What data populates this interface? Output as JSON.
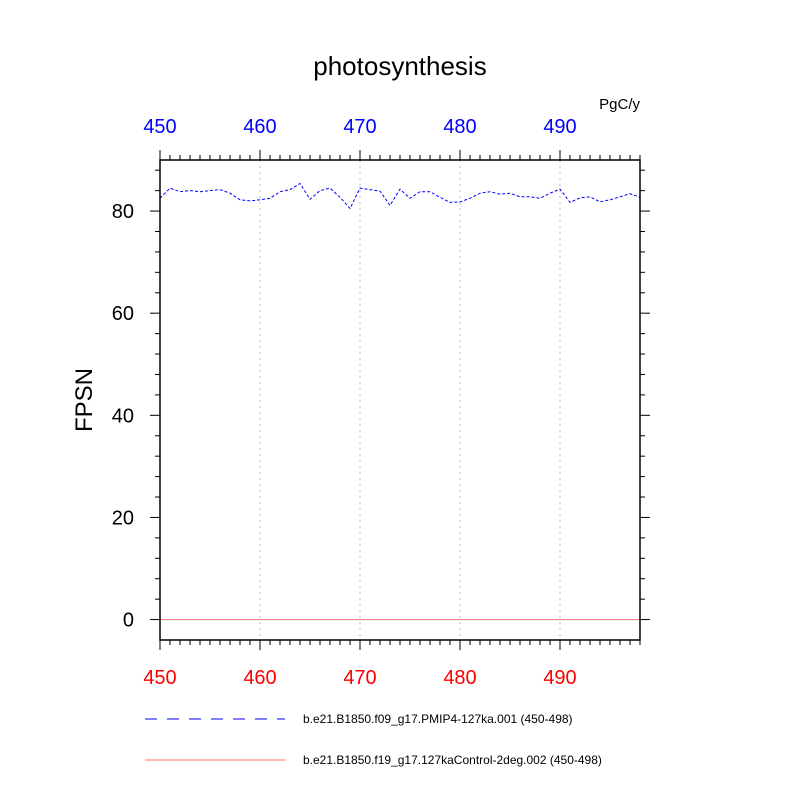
{
  "chart_data": {
    "type": "line",
    "title": "photosynthesis",
    "units": "PgC/y",
    "ylabel": "FPSN",
    "xlabel": "",
    "xlim": [
      450,
      498
    ],
    "ylim": [
      -4,
      90
    ],
    "xticks": [
      450,
      460,
      470,
      480,
      490
    ],
    "yticks": [
      0,
      20,
      40,
      60,
      80
    ],
    "grid": "vertical dotted at major x ticks",
    "colors": {
      "top_axis_labels": "#0000ff",
      "bottom_axis_labels": "#ff0000",
      "series_1": "#0000ff",
      "series_2": "#ff6f6f",
      "grid": "#bbbbbb",
      "frame": "#000000"
    },
    "x": [
      450,
      451,
      452,
      453,
      454,
      455,
      456,
      457,
      458,
      459,
      460,
      461,
      462,
      463,
      464,
      465,
      466,
      467,
      468,
      469,
      470,
      471,
      472,
      473,
      474,
      475,
      476,
      477,
      478,
      479,
      480,
      481,
      482,
      483,
      484,
      485,
      486,
      487,
      488,
      489,
      490,
      491,
      492,
      493,
      494,
      495,
      496,
      497,
      498
    ],
    "series": [
      {
        "name": "b.e21.B1850.f09_g17.PMIP4-127ka.001 (450-498)",
        "style": "dashed",
        "values": [
          82.5,
          84.5,
          83.8,
          84.0,
          83.8,
          84.0,
          84.2,
          83.5,
          82.2,
          82.0,
          82.2,
          82.5,
          83.8,
          84.2,
          85.4,
          82.3,
          84.0,
          84.5,
          82.7,
          80.5,
          84.5,
          84.2,
          83.9,
          81.1,
          84.3,
          82.5,
          83.8,
          83.8,
          82.7,
          81.7,
          81.8,
          82.5,
          83.5,
          83.8,
          83.3,
          83.5,
          82.8,
          82.8,
          82.5,
          83.5,
          84.3,
          81.7,
          82.6,
          82.8,
          81.8,
          82.2,
          82.8,
          83.4,
          82.7
        ]
      },
      {
        "name": "b.e21.B1850.f19_g17.127kaControl-2deg.002 (450-498)",
        "style": "solid",
        "values": [
          0,
          0,
          0,
          0,
          0,
          0,
          0,
          0,
          0,
          0,
          0,
          0,
          0,
          0,
          0,
          0,
          0,
          0,
          0,
          0,
          0,
          0,
          0,
          0,
          0,
          0,
          0,
          0,
          0,
          0,
          0,
          0,
          0,
          0,
          0,
          0,
          0,
          0,
          0,
          0,
          0,
          0,
          0,
          0,
          0,
          0,
          0,
          0,
          0
        ]
      }
    ],
    "legend_position": "bottom"
  }
}
